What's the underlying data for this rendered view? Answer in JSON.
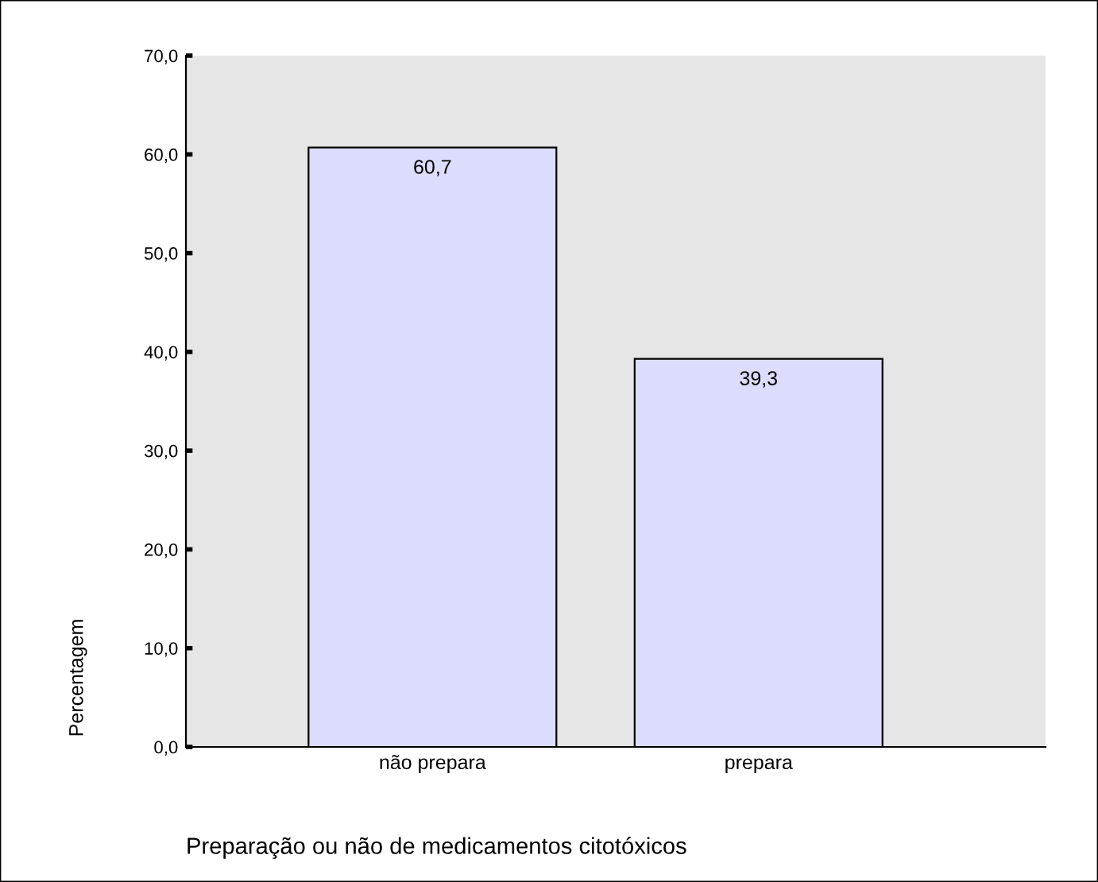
{
  "chart_data": {
    "type": "bar",
    "xlabel": "Preparação ou não de medicamentos citotóxicos",
    "ylabel": "Percentagem",
    "categories": [
      "não prepara",
      "prepara"
    ],
    "values": [
      60.7,
      39.3
    ],
    "value_labels": [
      "60,7",
      "39,3"
    ],
    "color": "#dcdcfc",
    "ylim": [
      0,
      70
    ],
    "yticks": [
      {
        "value": 0,
        "label": "0,0"
      },
      {
        "value": 10,
        "label": "10,0"
      },
      {
        "value": 20,
        "label": "20,0"
      },
      {
        "value": 30,
        "label": "30,0"
      },
      {
        "value": 40,
        "label": "40,0"
      },
      {
        "value": 50,
        "label": "50,0"
      },
      {
        "value": 60,
        "label": "60,0"
      },
      {
        "value": 70,
        "label": "70,0"
      }
    ],
    "grid": false
  }
}
